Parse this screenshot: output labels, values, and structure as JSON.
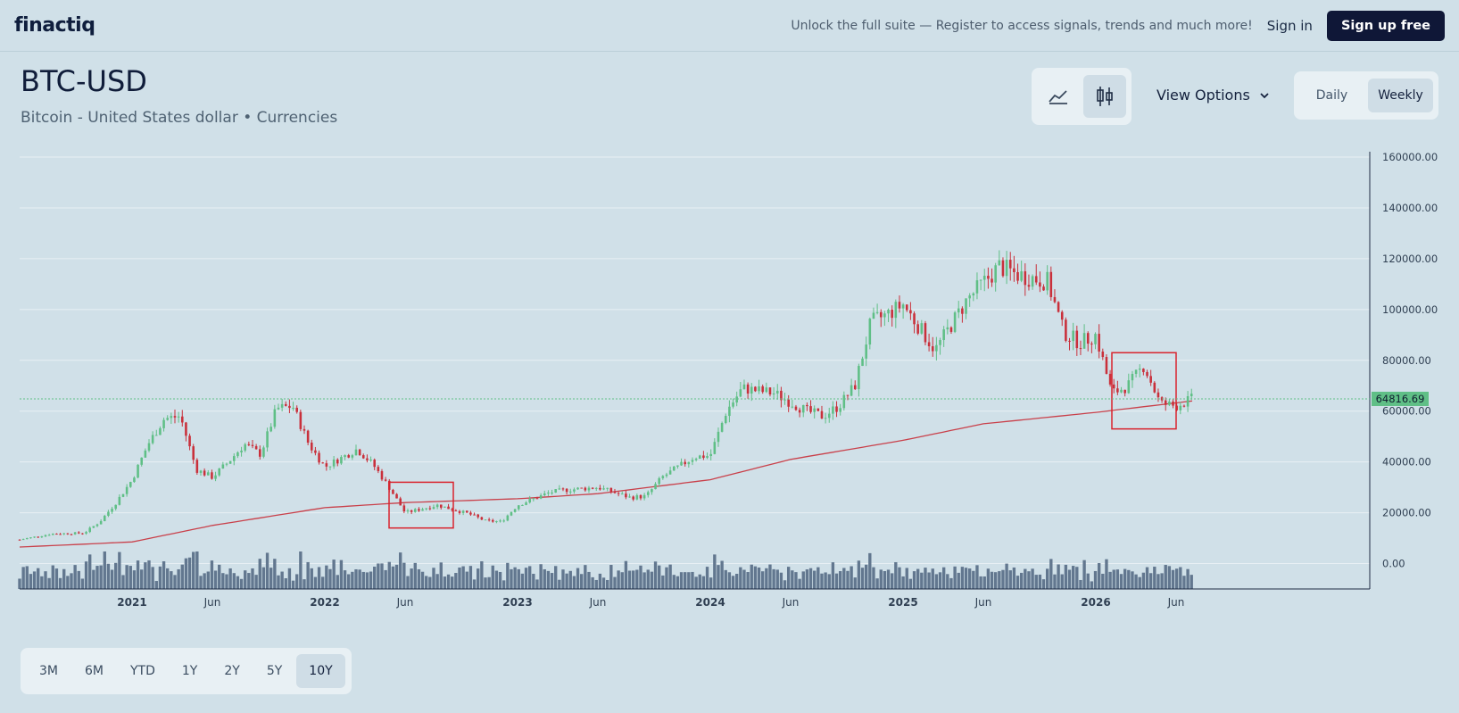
{
  "header": {
    "logo": "finactiq",
    "promo": "Unlock the full suite — Register to access signals, trends and much more!",
    "sign_in": "Sign in",
    "sign_up": "Sign up free"
  },
  "instrument": {
    "ticker": "BTC-USD",
    "description": "Bitcoin - United States dollar • Currencies"
  },
  "toolbar": {
    "chart_types": [
      {
        "icon": "area-chart-icon",
        "active": false
      },
      {
        "icon": "candlestick-icon",
        "active": true
      }
    ],
    "view_options_label": "View Options",
    "intervals": [
      {
        "label": "Daily",
        "active": false
      },
      {
        "label": "Weekly",
        "active": true
      }
    ]
  },
  "ranges": [
    {
      "label": "3M",
      "active": false
    },
    {
      "label": "6M",
      "active": false
    },
    {
      "label": "YTD",
      "active": false
    },
    {
      "label": "1Y",
      "active": false
    },
    {
      "label": "2Y",
      "active": false
    },
    {
      "label": "5Y",
      "active": false
    },
    {
      "label": "10Y",
      "active": true
    }
  ],
  "colors": {
    "up": "#5fbf86",
    "down": "#c9303b",
    "ma": "#c9404a",
    "volume": "#62778f",
    "last_price_bg": "#5fbf86",
    "highlight_box": "#d9232d"
  },
  "chart_data": {
    "type": "candlestick",
    "y_tick_labels": [
      "160000.00",
      "140000.00",
      "120000.00",
      "100000.00",
      "80000.00",
      "60000.00",
      "40000.00",
      "20000.00",
      "0.00"
    ],
    "ylim": [
      -10000,
      160000
    ],
    "x_tick_labels": [
      "2021",
      "Jun",
      "2022",
      "Jun",
      "2023",
      "Jun",
      "2024",
      "Jun",
      "2025",
      "Jun",
      "2026",
      "Jun"
    ],
    "x_tick_dates": [
      "2021-01",
      "2021-06",
      "2022-01",
      "2022-06",
      "2023-01",
      "2023-06",
      "2024-01",
      "2024-06",
      "2025-01",
      "2025-06",
      "2026-01",
      "2026-06"
    ],
    "last_price": "64816.69",
    "last_price_value": 64816.69,
    "price_path": [
      [
        "2020-06",
        9400
      ],
      [
        "2020-08",
        11700
      ],
      [
        "2020-10",
        12000
      ],
      [
        "2020-11",
        16500
      ],
      [
        "2020-12",
        24000
      ],
      [
        "2021-01",
        33000
      ],
      [
        "2021-02",
        47000
      ],
      [
        "2021-03",
        57000
      ],
      [
        "2021-04",
        58000
      ],
      [
        "2021-05",
        37000
      ],
      [
        "2021-06",
        34000
      ],
      [
        "2021-07",
        40000
      ],
      [
        "2021-08",
        47000
      ],
      [
        "2021-09",
        43000
      ],
      [
        "2021-10",
        61000
      ],
      [
        "2021-11",
        62000
      ],
      [
        "2021-12",
        47000
      ],
      [
        "2022-01",
        38000
      ],
      [
        "2022-03",
        45000
      ],
      [
        "2022-04",
        39000
      ],
      [
        "2022-05",
        30000
      ],
      [
        "2022-06",
        20000
      ],
      [
        "2022-08",
        23000
      ],
      [
        "2022-10",
        19500
      ],
      [
        "2022-11",
        16800
      ],
      [
        "2022-12",
        16500
      ],
      [
        "2023-01",
        23000
      ],
      [
        "2023-03",
        28000
      ],
      [
        "2023-04",
        29000
      ],
      [
        "2023-06",
        30000
      ],
      [
        "2023-08",
        26000
      ],
      [
        "2023-09",
        26500
      ],
      [
        "2023-10",
        34000
      ],
      [
        "2023-12",
        42000
      ],
      [
        "2024-01",
        42500
      ],
      [
        "2024-02",
        60000
      ],
      [
        "2024-03",
        69000
      ],
      [
        "2024-05",
        67000
      ],
      [
        "2024-07",
        60000
      ],
      [
        "2024-08",
        58000
      ],
      [
        "2024-09",
        62000
      ],
      [
        "2024-10",
        70000
      ],
      [
        "2024-11",
        95000
      ],
      [
        "2024-12",
        98000
      ],
      [
        "2025-01",
        102000
      ],
      [
        "2025-03",
        84000
      ],
      [
        "2025-04",
        94000
      ],
      [
        "2025-05",
        104000
      ],
      [
        "2025-07",
        117000
      ],
      [
        "2025-08",
        114000
      ],
      [
        "2025-10",
        111000
      ],
      [
        "2025-11",
        91000
      ],
      [
        "2025-12",
        87000
      ],
      [
        "2026-01",
        90000
      ],
      [
        "2026-02",
        67000
      ],
      [
        "2026-03",
        70000
      ],
      [
        "2026-04",
        78000
      ],
      [
        "2026-05",
        63000
      ],
      [
        "2026-06",
        62000
      ],
      [
        "2026-07",
        64816
      ]
    ],
    "moving_average": [
      [
        "2020-06",
        6500
      ],
      [
        "2021-01",
        8500
      ],
      [
        "2021-06",
        15000
      ],
      [
        "2022-01",
        22000
      ],
      [
        "2022-06",
        24000
      ],
      [
        "2023-01",
        25500
      ],
      [
        "2023-06",
        27500
      ],
      [
        "2024-01",
        33000
      ],
      [
        "2024-06",
        41000
      ],
      [
        "2025-01",
        48500
      ],
      [
        "2025-06",
        55000
      ],
      [
        "2026-01",
        59500
      ],
      [
        "2026-07",
        64000
      ]
    ],
    "highlight_boxes": [
      {
        "from": "2022-05",
        "to": "2022-09",
        "low": 14000,
        "high": 32000
      },
      {
        "from": "2026-02",
        "to": "2026-06",
        "low": 53000,
        "high": 83000
      }
    ],
    "grid": true,
    "volume": true
  }
}
